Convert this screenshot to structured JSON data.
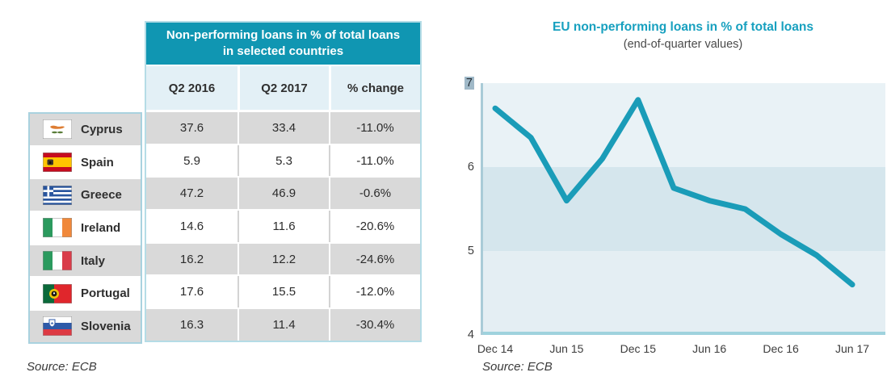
{
  "table": {
    "title_line1": "Non-performing loans in % of total loans",
    "title_line2": "in selected countries",
    "columns": [
      "Q2 2016",
      "Q2 2017",
      "% change"
    ],
    "rows": [
      {
        "flag": "cyprus-flag",
        "country": "Cyprus",
        "q2_2016": "37.6",
        "q2_2017": "33.4",
        "change": "-11.0%"
      },
      {
        "flag": "spain-flag",
        "country": "Spain",
        "q2_2016": "5.9",
        "q2_2017": "5.3",
        "change": "-11.0%"
      },
      {
        "flag": "greece-flag",
        "country": "Greece",
        "q2_2016": "47.2",
        "q2_2017": "46.9",
        "change": "-0.6%"
      },
      {
        "flag": "ireland-flag",
        "country": "Ireland",
        "q2_2016": "14.6",
        "q2_2017": "11.6",
        "change": "-20.6%"
      },
      {
        "flag": "italy-flag",
        "country": "Italy",
        "q2_2016": "16.2",
        "q2_2017": "12.2",
        "change": "-24.6%"
      },
      {
        "flag": "portugal-flag",
        "country": "Portugal",
        "q2_2016": "17.6",
        "q2_2017": "15.5",
        "change": "-12.0%"
      },
      {
        "flag": "slovenia-flag",
        "country": "Slovenia",
        "q2_2016": "16.3",
        "q2_2017": "11.4",
        "change": "-30.4%"
      }
    ],
    "source": "Source: ECB"
  },
  "chart": {
    "source": "Source: ECB"
  },
  "chart_data": {
    "type": "line",
    "title": "EU non-performing loans in % of total loans",
    "subtitle": "(end-of-quarter values)",
    "x": [
      "Dec 14",
      "Mar 15",
      "Jun 15",
      "Sep 15",
      "Dec 15",
      "Mar 16",
      "Jun 16",
      "Sep 16",
      "Dec 16",
      "Mar 17",
      "Jun 17"
    ],
    "values": [
      6.7,
      6.35,
      5.6,
      6.1,
      6.8,
      5.75,
      5.6,
      5.5,
      5.2,
      4.95,
      4.6
    ],
    "ylim": [
      4,
      7
    ],
    "y_ticks_top_to_bottom": [
      "7",
      "6",
      "5",
      "4"
    ],
    "highlighted_y_tick": "7",
    "x_tick_labels": [
      "Dec 14",
      "Jun 15",
      "Dec 15",
      "Jun 16",
      "Dec 16",
      "Jun 17"
    ],
    "legend": "none",
    "grid": "horizontal color bands at integer values",
    "line_color": "#1a9cb8",
    "band_colors": [
      "#e9f2f6",
      "#d5e6ed",
      "#e4eef3"
    ],
    "axis_color": "#a9cbd7",
    "baseline_color": "#9fd2dd"
  },
  "colors": {
    "accent_teal": "#1096b2",
    "table_border": "#a9d2df",
    "row_gray": "#d9d9d9",
    "subheader_bg": "#e3f0f6"
  }
}
